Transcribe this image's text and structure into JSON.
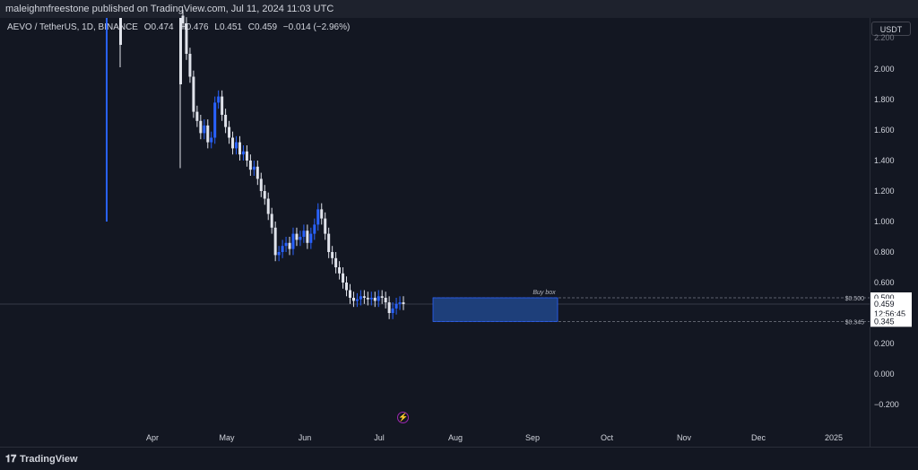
{
  "header": {
    "publisher_text": "maleighmfreestone published on TradingView.com, Jul 11, 2024 11:03 UTC"
  },
  "symbol": {
    "name": "AEVO / TetherUS, 1D, BINANCE",
    "open": "O0.474",
    "high": "H0.476",
    "low": "L0.451",
    "close": "C0.459",
    "change": "−0.014 (−2.96%)"
  },
  "currency_button": "USDT",
  "footer": {
    "brand": "TradingView"
  },
  "colors": {
    "up": "#2962ff",
    "down": "#e0e3eb",
    "box": "#1e3f7a",
    "bg": "#131722"
  },
  "chart_data": {
    "type": "candlestick",
    "x_ticks": [
      "Apr",
      "May",
      "Jun",
      "Jul",
      "Aug",
      "Sep",
      "Oct",
      "Nov",
      "Dec",
      "2025"
    ],
    "y_ticks": [
      "2.000",
      "1.800",
      "1.600",
      "1.400",
      "1.200",
      "1.000",
      "0.800",
      "0.600",
      "0.400",
      "0.200",
      "0.000",
      "−0.200"
    ],
    "ylim": [
      -0.25,
      2.18
    ],
    "series_close": [
      2.3,
      2.1,
      1.95,
      1.72,
      1.66,
      1.58,
      1.63,
      1.52,
      1.55,
      1.78,
      1.82,
      1.7,
      1.62,
      1.55,
      1.48,
      1.52,
      1.44,
      1.46,
      1.4,
      1.34,
      1.36,
      1.28,
      1.2,
      1.15,
      1.05,
      0.96,
      0.78,
      0.8,
      0.84,
      0.86,
      0.82,
      0.92,
      0.88,
      0.9,
      0.94,
      0.86,
      0.92,
      0.98,
      1.08,
      1.02,
      0.92,
      0.8,
      0.76,
      0.7,
      0.66,
      0.6,
      0.55,
      0.5,
      0.48,
      0.49,
      0.51,
      0.5,
      0.49,
      0.5,
      0.48,
      0.51,
      0.5,
      0.47,
      0.4,
      0.43,
      0.46,
      0.47,
      0.459
    ],
    "buy_box": {
      "label": "Buy box",
      "top": 0.5,
      "bottom": 0.345,
      "start": "Jul 24",
      "end": "Sep 14"
    },
    "price_labels": {
      "upper": "$0.500",
      "lower": "$0.345",
      "box_top": "0.500",
      "last": "0.459",
      "countdown": "12:56:45",
      "box_bottom": "0.345"
    },
    "top_tick_partial": "2.200"
  }
}
